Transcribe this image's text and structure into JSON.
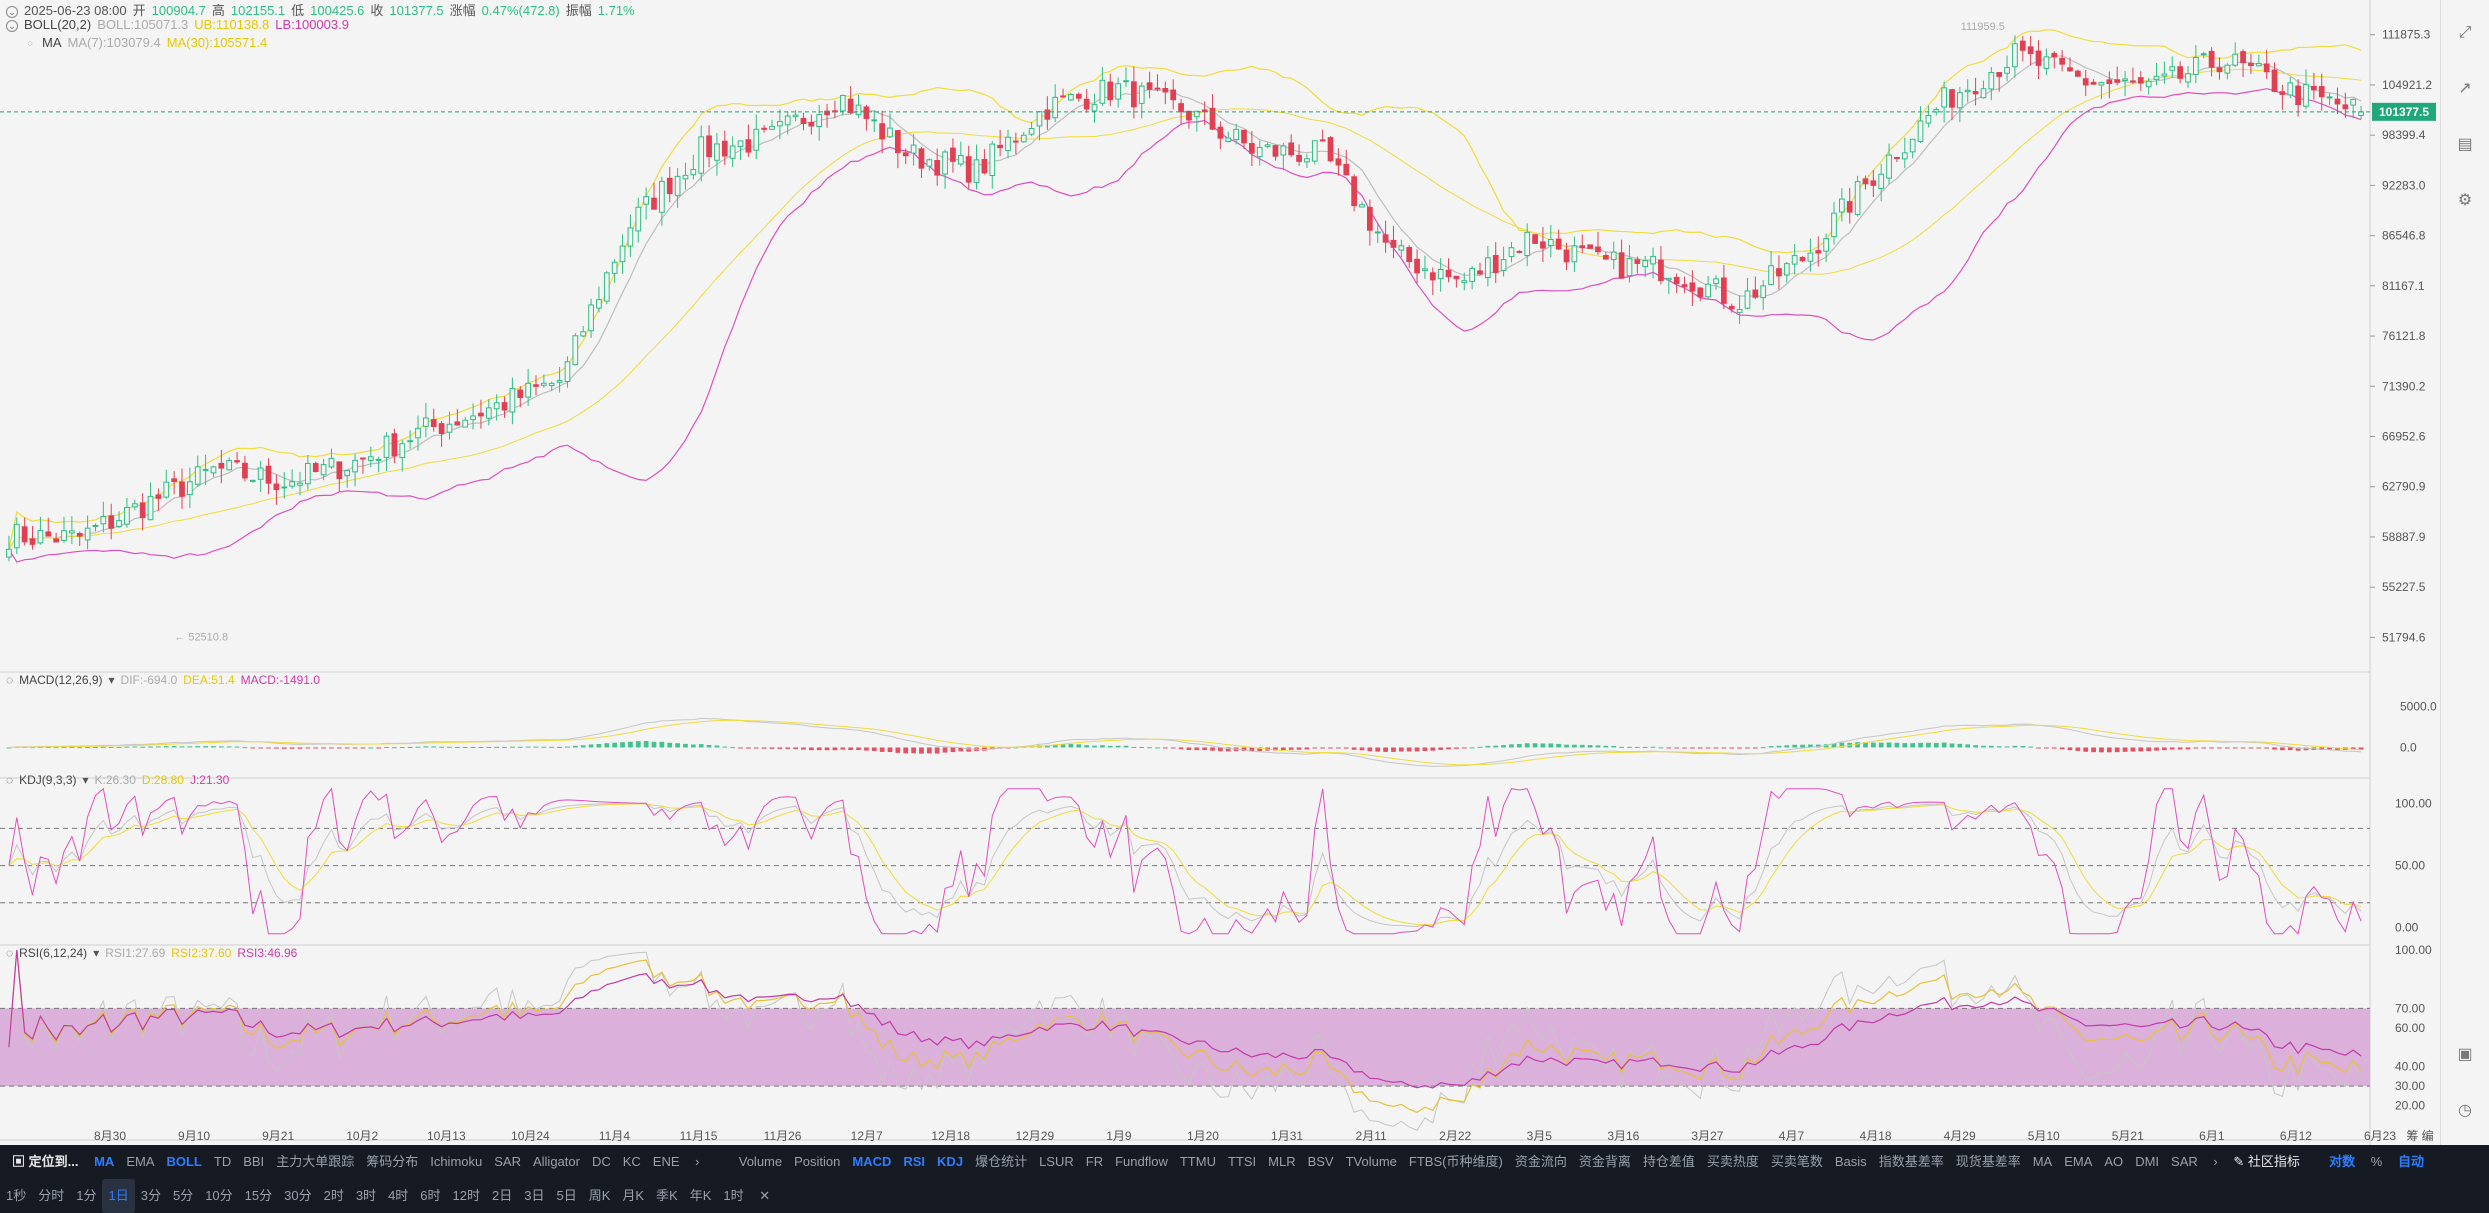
{
  "ohlc_header": {
    "date": "2025-06-23 08:00",
    "open_label": "开",
    "open": "100904.7",
    "high_label": "高",
    "high": "102155.1",
    "low_label": "低",
    "low": "100425.6",
    "close_label": "收",
    "close": "101377.5",
    "change_label": "涨幅",
    "change": "0.47%(472.8)",
    "amp_label": "振幅",
    "amp": "1.71%"
  },
  "boll_legend": {
    "name": "BOLL(20,2)",
    "boll": "BOLL:105071.3",
    "ub": "UB:110138.8",
    "lb": "LB:100003.9"
  },
  "ma_legend": {
    "name": "MA",
    "ma7": "MA(7):103079.4",
    "ma30": "MA(30):105571.4"
  },
  "macd_legend": {
    "name": "MACD(12,26,9)",
    "dif": "DIF:-694.0",
    "dea": "DEA:51.4",
    "macd": "MACD:-1491.0"
  },
  "kdj_legend": {
    "name": "KDJ(9,3,3)",
    "k": "K:26.30",
    "d": "D:28.80",
    "j": "J:21.30"
  },
  "rsi_legend": {
    "name": "RSI(6,12,24)",
    "rsi1": "RSI1:27.69",
    "rsi2": "RSI2:37.60",
    "rsi3": "RSI3:46.96"
  },
  "colors": {
    "up": "#2ebd85",
    "down": "#e04052",
    "ma7": "#bdbdbd",
    "ma30": "#f0dc3a",
    "boll_lb": "#e04fbd",
    "rsi_band": "#d8a9d8",
    "accent": "#2d7dff",
    "price_tag": "#1fa67a"
  },
  "current_price_tag": "101377.5",
  "high_marker": "111959.5",
  "low_marker": "52510.8",
  "main_axis_ticks": [
    "111875.3",
    "104921.2",
    "98399.4",
    "92283.0",
    "86546.8",
    "81167.1",
    "76121.8",
    "71390.2",
    "66952.6",
    "62790.9",
    "58887.9",
    "55227.5",
    "51794.6"
  ],
  "macd_axis_ticks": [
    "5000.0",
    "0.0"
  ],
  "kdj_axis_ticks": [
    "100.00",
    "50.00",
    "0.00"
  ],
  "rsi_axis_ticks": [
    "100.00",
    "70.00",
    "60.00",
    "40.00",
    "30.00",
    "20.00"
  ],
  "x_axis_dates": [
    "8月30",
    "9月10",
    "9月21",
    "10月2",
    "10月13",
    "10月24",
    "11月4",
    "11月15",
    "11月26",
    "12月7",
    "12月18",
    "12月29",
    "1月9",
    "1月20",
    "1月31",
    "2月11",
    "2月22",
    "3月5",
    "3月16",
    "3月27",
    "4月7",
    "4月18",
    "4月29",
    "5月10",
    "5月21",
    "6月1",
    "6月12",
    "6月23"
  ],
  "x_axis_extra": "筹 编",
  "indicator_bar": {
    "locate_label": "定位到...",
    "main_indicators": [
      {
        "label": "MA",
        "active": true
      },
      {
        "label": "EMA",
        "active": false
      },
      {
        "label": "BOLL",
        "active": true
      },
      {
        "label": "TD",
        "active": false
      },
      {
        "label": "BBI",
        "active": false
      },
      {
        "label": "主力大单跟踪",
        "active": false
      },
      {
        "label": "筹码分布",
        "active": false
      },
      {
        "label": "Ichimoku",
        "active": false
      },
      {
        "label": "SAR",
        "active": false
      },
      {
        "label": "Alligator",
        "active": false
      },
      {
        "label": "DC",
        "active": false
      },
      {
        "label": "KC",
        "active": false
      },
      {
        "label": "ENE",
        "active": false
      }
    ],
    "sub_indicators": [
      {
        "label": "Volume",
        "active": false
      },
      {
        "label": "Position",
        "active": false
      },
      {
        "label": "MACD",
        "active": true
      },
      {
        "label": "RSI",
        "active": true
      },
      {
        "label": "KDJ",
        "active": true
      },
      {
        "label": "爆仓统计",
        "active": false
      },
      {
        "label": "LSUR",
        "active": false
      },
      {
        "label": "FR",
        "active": false
      },
      {
        "label": "Fundflow",
        "active": false
      },
      {
        "label": "TTMU",
        "active": false
      },
      {
        "label": "TTSI",
        "active": false
      },
      {
        "label": "MLR",
        "active": false
      },
      {
        "label": "BSV",
        "active": false
      },
      {
        "label": "TVolume",
        "active": false
      },
      {
        "label": "FTBS(币种维度)",
        "active": false
      },
      {
        "label": "资金流向",
        "active": false
      },
      {
        "label": "资金背离",
        "active": false
      },
      {
        "label": "持仓差值",
        "active": false
      },
      {
        "label": "买卖热度",
        "active": false
      },
      {
        "label": "买卖笔数",
        "active": false
      },
      {
        "label": "Basis",
        "active": false
      },
      {
        "label": "指数基差率",
        "active": false
      },
      {
        "label": "现货基差率",
        "active": false
      },
      {
        "label": "MA",
        "active": false
      },
      {
        "label": "EMA",
        "active": false
      },
      {
        "label": "AO",
        "active": false
      },
      {
        "label": "DMI",
        "active": false
      },
      {
        "label": "SAR",
        "active": false
      }
    ],
    "community_label": "社区指标",
    "log_label": "对数",
    "percent_label": "%",
    "auto_label": "自动"
  },
  "timeframes": [
    {
      "label": "1秒",
      "active": false
    },
    {
      "label": "分时",
      "active": false
    },
    {
      "label": "1分",
      "active": false
    },
    {
      "label": "1日",
      "active": true
    },
    {
      "label": "3分",
      "active": false
    },
    {
      "label": "5分",
      "active": false
    },
    {
      "label": "10分",
      "active": false
    },
    {
      "label": "15分",
      "active": false
    },
    {
      "label": "30分",
      "active": false
    },
    {
      "label": "2时",
      "active": false
    },
    {
      "label": "3时",
      "active": false
    },
    {
      "label": "4时",
      "active": false
    },
    {
      "label": "6时",
      "active": false
    },
    {
      "label": "12时",
      "active": false
    },
    {
      "label": "2日",
      "active": false
    },
    {
      "label": "3日",
      "active": false
    },
    {
      "label": "5日",
      "active": false
    },
    {
      "label": "周K",
      "active": false
    },
    {
      "label": "月K",
      "active": false
    },
    {
      "label": "季K",
      "active": false
    },
    {
      "label": "年K",
      "active": false
    },
    {
      "label": "1时",
      "active": false
    }
  ],
  "chart_data": {
    "type": "candlestick",
    "interval": "1日",
    "x_ticks": [
      "8月30",
      "9月10",
      "9月21",
      "10月2",
      "10月13",
      "10月24",
      "11月4",
      "11月15",
      "11月26",
      "12月7",
      "12月18",
      "12月29",
      "1月9",
      "1月20",
      "1月31",
      "2月11",
      "2月22",
      "3月5",
      "3月16",
      "3月27",
      "4月7",
      "4月18",
      "4月29",
      "5月10",
      "5月21",
      "6月1",
      "6月12",
      "6月23"
    ],
    "close_anchors": [
      59000,
      58800,
      61500,
      64200,
      63200,
      64800,
      67500,
      69500,
      72000,
      88000,
      96500,
      98000,
      103500,
      96000,
      94000,
      102000,
      104500,
      101500,
      96500,
      96000,
      84500,
      81500,
      86500,
      83500,
      83000,
      79500,
      84500,
      94000,
      103000,
      109000,
      105500,
      104500,
      108500,
      104000,
      101377.5
    ],
    "last_bar": {
      "open": 100904.7,
      "high": 102155.1,
      "low": 100425.6,
      "close": 101377.5
    },
    "period_high": 111959.5,
    "period_low": 52510.8,
    "current_price": 101377.5,
    "y_range": [
      50000,
      114000
    ],
    "y_scale": "log",
    "overlays": [
      "BOLL(20,2)",
      "MA(7)",
      "MA(30)"
    ],
    "macd_range": [
      -2500,
      7000
    ],
    "kdj_levels": [
      80,
      50,
      20
    ],
    "kdj_range": [
      -10,
      115
    ],
    "rsi_levels": [
      70,
      30
    ],
    "rsi_range": [
      10,
      100
    ]
  }
}
